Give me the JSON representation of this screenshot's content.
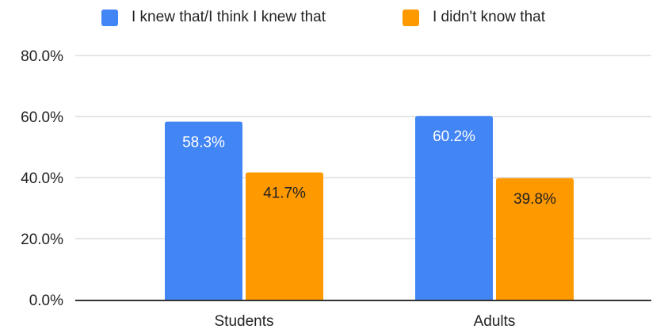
{
  "chart_data": {
    "type": "bar",
    "categories": [
      "Students",
      "Adults"
    ],
    "series": [
      {
        "name": "I knew that/I think I knew that",
        "values": [
          58.3,
          60.2
        ],
        "labels": [
          "58.3%",
          "60.2%"
        ],
        "color": "#4285f4",
        "label_color": "#ffffff"
      },
      {
        "name": "I didn't know that",
        "values": [
          41.7,
          39.8
        ],
        "labels": [
          "41.7%",
          "39.8%"
        ],
        "color": "#ff9900",
        "label_color": "#222222"
      }
    ],
    "y_ticks": [
      0,
      20,
      40,
      60,
      80
    ],
    "y_tick_labels": [
      "0.0%",
      "20.0%",
      "40.0%",
      "60.0%",
      "80.0%"
    ],
    "ylim": [
      0,
      80
    ],
    "grid": true,
    "legend_position": "top",
    "title": "",
    "xlabel": "",
    "ylabel": ""
  }
}
